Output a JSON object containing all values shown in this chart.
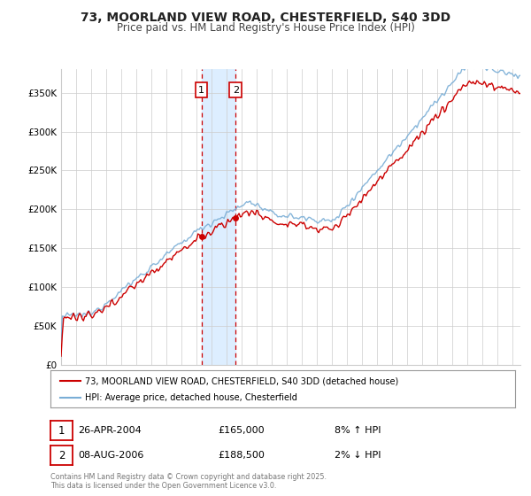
{
  "title": "73, MOORLAND VIEW ROAD, CHESTERFIELD, S40 3DD",
  "subtitle": "Price paid vs. HM Land Registry's House Price Index (HPI)",
  "legend_line1": "73, MOORLAND VIEW ROAD, CHESTERFIELD, S40 3DD (detached house)",
  "legend_line2": "HPI: Average price, detached house, Chesterfield",
  "transaction1_label": "1",
  "transaction1_date": "26-APR-2004",
  "transaction1_price": "£165,000",
  "transaction1_hpi": "8% ↑ HPI",
  "transaction2_label": "2",
  "transaction2_date": "08-AUG-2006",
  "transaction2_price": "£188,500",
  "transaction2_hpi": "2% ↓ HPI",
  "footer": "Contains HM Land Registry data © Crown copyright and database right 2025.\nThis data is licensed under the Open Government Licence v3.0.",
  "property_color": "#cc0000",
  "hpi_color": "#7aaed6",
  "shade_color": "#ddeeff",
  "background_color": "#ffffff",
  "grid_color": "#cccccc",
  "ylim": [
    0,
    380000
  ],
  "yticks": [
    0,
    50000,
    100000,
    150000,
    200000,
    250000,
    300000,
    350000
  ],
  "ytick_labels": [
    "£0",
    "£50K",
    "£100K",
    "£150K",
    "£200K",
    "£250K",
    "£300K",
    "£350K"
  ],
  "x_start_year": 1995,
  "x_end_year": 2025,
  "transaction1_year": 2004.32,
  "transaction2_year": 2006.6,
  "transaction1_value": 165000,
  "transaction2_value": 188500
}
